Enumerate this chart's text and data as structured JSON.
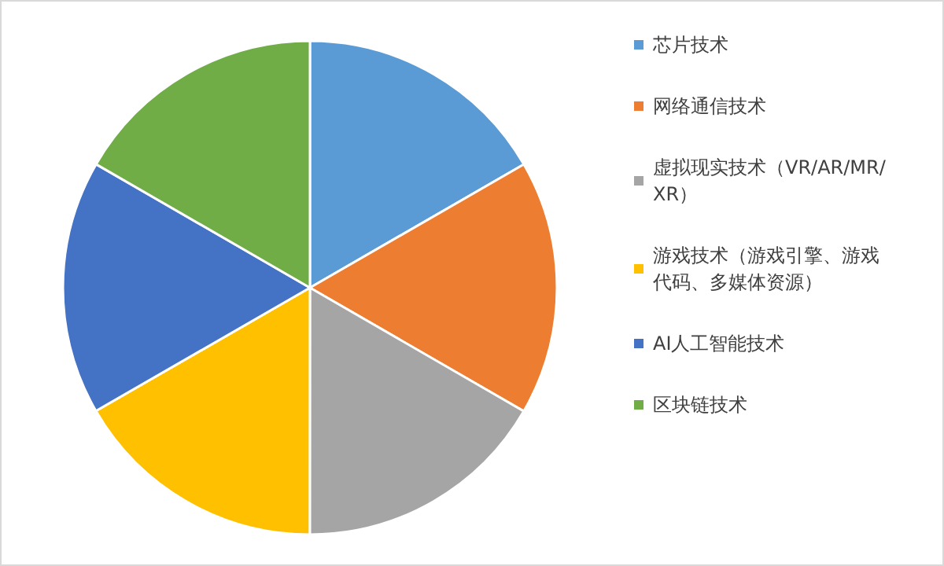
{
  "chart_data": {
    "type": "pie",
    "categories": [
      "芯片技术",
      "网络通信技术",
      "虚拟现实技术（VR/AR/MR/XR）",
      "游戏技术（游戏引擎、游戏代码、多媒体资源）",
      "AI人工智能技术",
      "区块链技术"
    ],
    "values": [
      16.67,
      16.67,
      16.67,
      16.67,
      16.66,
      16.66
    ],
    "colors": [
      "#5b9bd5",
      "#ed7d31",
      "#a5a5a5",
      "#ffc000",
      "#4472c4",
      "#70ad47"
    ],
    "legend": "right"
  }
}
